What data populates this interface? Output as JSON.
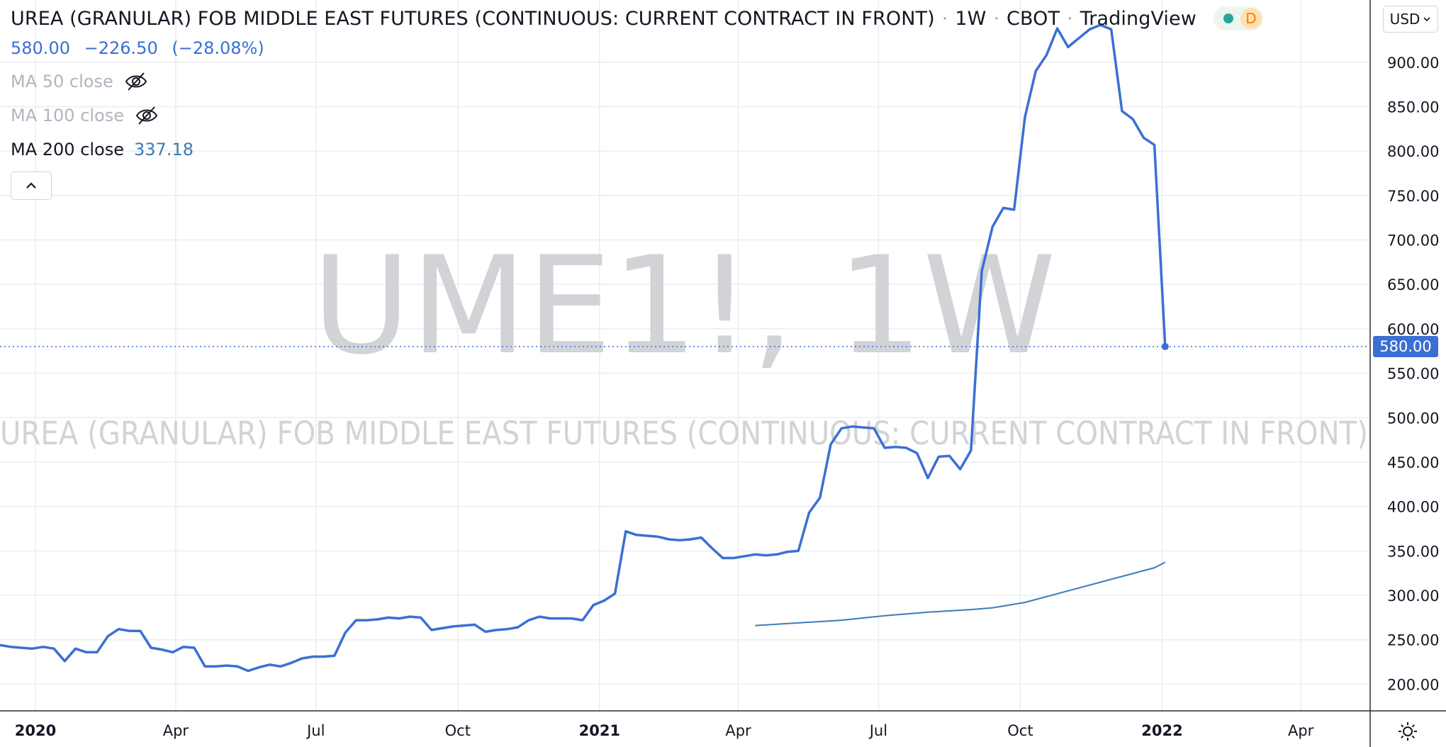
{
  "header": {
    "symbol_description": "UREA (GRANULAR) FOB MIDDLE EAST FUTURES (CONTINUOUS: CURRENT CONTRACT IN FRONT)",
    "interval": "1W",
    "exchange": "CBOT",
    "source": "TradingView",
    "separator": "·",
    "delay_badge": "D"
  },
  "quote": {
    "last": "580.00",
    "change": "−226.50",
    "change_pct": "(−28.08%)"
  },
  "indicators": [
    {
      "label": "MA 50 close",
      "value": "",
      "visible": false
    },
    {
      "label": "MA 100 close",
      "value": "",
      "visible": false
    },
    {
      "label": "MA 200 close",
      "value": "337.18",
      "visible": true
    }
  ],
  "currency": {
    "label": "USD"
  },
  "watermark": {
    "symbol": "UME1!, 1W",
    "description": "UREA (GRANULAR) FOB MIDDLE EAST FUTURES (CONTINUOUS: CURRENT CONTRACT IN FRONT)"
  },
  "last_price_label": "580.00",
  "colors": {
    "price_line": "#3b6fd4",
    "ma_line": "#3d7bb6",
    "grid": "#ebedf1",
    "watermark": "#d2d3d6",
    "axis_text": "#131722"
  },
  "chart_data": {
    "type": "line",
    "x_axis": {
      "range": [
        "2019-12-09",
        "2022-05-16"
      ],
      "ticks": [
        {
          "label": "2020",
          "date": "2020-01-01",
          "bold": true
        },
        {
          "label": "Apr",
          "date": "2020-04-01",
          "bold": false
        },
        {
          "label": "Jul",
          "date": "2020-07-01",
          "bold": false
        },
        {
          "label": "Oct",
          "date": "2020-10-01",
          "bold": false
        },
        {
          "label": "2021",
          "date": "2021-01-01",
          "bold": true
        },
        {
          "label": "Apr",
          "date": "2021-04-01",
          "bold": false
        },
        {
          "label": "Jul",
          "date": "2021-07-01",
          "bold": false
        },
        {
          "label": "Oct",
          "date": "2021-10-01",
          "bold": false
        },
        {
          "label": "2022",
          "date": "2022-01-01",
          "bold": true
        },
        {
          "label": "Apr",
          "date": "2022-04-01",
          "bold": false
        }
      ]
    },
    "y_axis": {
      "range": [
        170,
        970
      ],
      "position": "right",
      "ticks": [
        200,
        250,
        300,
        350,
        400,
        450,
        500,
        550,
        600,
        650,
        700,
        750,
        800,
        850,
        900
      ],
      "tick_labels": [
        "200.00",
        "250.00",
        "300.00",
        "350.00",
        "400.00",
        "450.00",
        "500.00",
        "550.00",
        "600.00",
        "650.00",
        "700.00",
        "750.00",
        "800.00",
        "850.00",
        "900.00"
      ]
    },
    "grid": true,
    "series": [
      {
        "role": "price",
        "points": [
          [
            "2019-12-09",
            244
          ],
          [
            "2019-12-16",
            242
          ],
          [
            "2019-12-23",
            241
          ],
          [
            "2019-12-30",
            240
          ],
          [
            "2020-01-06",
            242
          ],
          [
            "2020-01-13",
            240
          ],
          [
            "2020-01-20",
            226
          ],
          [
            "2020-01-27",
            240
          ],
          [
            "2020-02-03",
            236
          ],
          [
            "2020-02-10",
            236
          ],
          [
            "2020-02-17",
            254
          ],
          [
            "2020-02-24",
            262
          ],
          [
            "2020-03-02",
            260
          ],
          [
            "2020-03-09",
            260
          ],
          [
            "2020-03-16",
            241
          ],
          [
            "2020-03-23",
            239
          ],
          [
            "2020-03-30",
            236
          ],
          [
            "2020-04-06",
            242
          ],
          [
            "2020-04-13",
            241
          ],
          [
            "2020-04-20",
            220
          ],
          [
            "2020-04-27",
            220
          ],
          [
            "2020-05-04",
            221
          ],
          [
            "2020-05-11",
            220
          ],
          [
            "2020-05-18",
            215
          ],
          [
            "2020-05-25",
            219
          ],
          [
            "2020-06-01",
            222
          ],
          [
            "2020-06-08",
            220
          ],
          [
            "2020-06-15",
            224
          ],
          [
            "2020-06-22",
            229
          ],
          [
            "2020-06-29",
            231
          ],
          [
            "2020-07-06",
            231
          ],
          [
            "2020-07-13",
            232
          ],
          [
            "2020-07-20",
            258
          ],
          [
            "2020-07-27",
            272
          ],
          [
            "2020-08-03",
            272
          ],
          [
            "2020-08-10",
            273
          ],
          [
            "2020-08-17",
            275
          ],
          [
            "2020-08-24",
            274
          ],
          [
            "2020-08-31",
            276
          ],
          [
            "2020-09-07",
            275
          ],
          [
            "2020-09-14",
            261
          ],
          [
            "2020-09-21",
            263
          ],
          [
            "2020-09-28",
            265
          ],
          [
            "2020-10-05",
            266
          ],
          [
            "2020-10-12",
            267
          ],
          [
            "2020-10-19",
            259
          ],
          [
            "2020-10-26",
            261
          ],
          [
            "2020-11-02",
            262
          ],
          [
            "2020-11-09",
            264
          ],
          [
            "2020-11-16",
            272
          ],
          [
            "2020-11-23",
            276
          ],
          [
            "2020-11-30",
            274
          ],
          [
            "2020-12-07",
            274
          ],
          [
            "2020-12-14",
            274
          ],
          [
            "2020-12-21",
            272
          ],
          [
            "2020-12-28",
            289
          ],
          [
            "2021-01-04",
            294
          ],
          [
            "2021-01-11",
            302
          ],
          [
            "2021-01-18",
            372
          ],
          [
            "2021-01-25",
            368
          ],
          [
            "2021-02-01",
            367
          ],
          [
            "2021-02-08",
            366
          ],
          [
            "2021-02-15",
            363
          ],
          [
            "2021-02-22",
            362
          ],
          [
            "2021-03-01",
            363
          ],
          [
            "2021-03-08",
            365
          ],
          [
            "2021-03-15",
            353
          ],
          [
            "2021-03-22",
            342
          ],
          [
            "2021-03-29",
            342
          ],
          [
            "2021-04-05",
            344
          ],
          [
            "2021-04-12",
            346
          ],
          [
            "2021-04-19",
            345
          ],
          [
            "2021-04-26",
            346
          ],
          [
            "2021-05-03",
            349
          ],
          [
            "2021-05-10",
            350
          ],
          [
            "2021-05-17",
            393
          ],
          [
            "2021-05-24",
            410
          ],
          [
            "2021-05-31",
            470
          ],
          [
            "2021-06-07",
            488
          ],
          [
            "2021-06-14",
            490
          ],
          [
            "2021-06-21",
            489
          ],
          [
            "2021-06-28",
            488
          ],
          [
            "2021-07-05",
            466
          ],
          [
            "2021-07-12",
            467
          ],
          [
            "2021-07-19",
            466
          ],
          [
            "2021-07-26",
            460
          ],
          [
            "2021-08-02",
            432
          ],
          [
            "2021-08-09",
            456
          ],
          [
            "2021-08-16",
            457
          ],
          [
            "2021-08-23",
            442
          ],
          [
            "2021-08-30",
            463
          ],
          [
            "2021-09-06",
            665
          ],
          [
            "2021-09-13",
            715
          ],
          [
            "2021-09-20",
            736
          ],
          [
            "2021-09-27",
            734
          ],
          [
            "2021-10-04",
            838
          ],
          [
            "2021-10-11",
            890
          ],
          [
            "2021-10-18",
            908
          ],
          [
            "2021-10-25",
            938
          ],
          [
            "2021-11-01",
            917
          ],
          [
            "2021-11-08",
            927
          ],
          [
            "2021-11-15",
            937
          ],
          [
            "2021-11-22",
            942
          ],
          [
            "2021-11-29",
            937
          ],
          [
            "2021-12-06",
            845
          ],
          [
            "2021-12-13",
            836
          ],
          [
            "2021-12-20",
            815
          ],
          [
            "2021-12-27",
            807
          ],
          [
            "2022-01-03",
            580
          ]
        ]
      },
      {
        "role": "MA 200 close",
        "points": [
          [
            "2021-04-12",
            266
          ],
          [
            "2021-05-10",
            269
          ],
          [
            "2021-06-07",
            272
          ],
          [
            "2021-07-05",
            277
          ],
          [
            "2021-08-02",
            281
          ],
          [
            "2021-08-30",
            284
          ],
          [
            "2021-09-13",
            286
          ],
          [
            "2021-10-04",
            292
          ],
          [
            "2021-11-01",
            305
          ],
          [
            "2021-11-29",
            318
          ],
          [
            "2021-12-27",
            331
          ],
          [
            "2022-01-03",
            337.18
          ]
        ]
      }
    ]
  }
}
